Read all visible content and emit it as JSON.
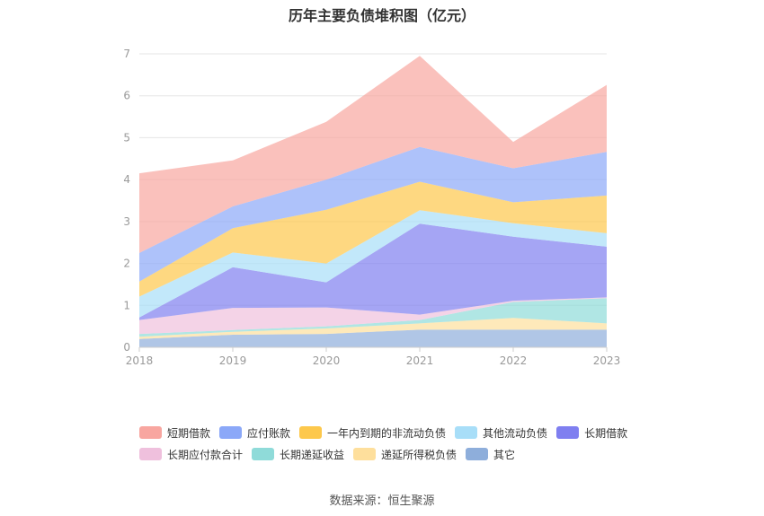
{
  "chart_data": {
    "type": "area",
    "stacked": true,
    "title": "历年主要负债堆积图（亿元）",
    "xlabel": "",
    "ylabel": "",
    "categories": [
      "2018",
      "2019",
      "2020",
      "2021",
      "2022",
      "2023"
    ],
    "ylim": [
      0,
      7
    ],
    "yticks": [
      0,
      1,
      2,
      3,
      4,
      5,
      6,
      7
    ],
    "grid": true,
    "legend_position": "bottom",
    "series": [
      {
        "name": "其它",
        "color": "#8eaedb",
        "values": [
          0.2,
          0.3,
          0.32,
          0.42,
          0.42,
          0.42
        ]
      },
      {
        "name": "递延所得税负债",
        "color": "#fedf9c",
        "values": [
          0.05,
          0.07,
          0.13,
          0.15,
          0.28,
          0.15
        ]
      },
      {
        "name": "长期递延收益",
        "color": "#8fdbd9",
        "values": [
          0.07,
          0.04,
          0.05,
          0.08,
          0.38,
          0.6
        ]
      },
      {
        "name": "长期应付款合计",
        "color": "#efc0dd",
        "values": [
          0.33,
          0.53,
          0.45,
          0.13,
          0.03,
          0.02
        ]
      },
      {
        "name": "长期借款",
        "color": "#7f7ff0",
        "values": [
          0.06,
          0.97,
          0.6,
          2.17,
          1.53,
          1.21
        ]
      },
      {
        "name": "其他流动负债",
        "color": "#a8def8",
        "values": [
          0.5,
          0.35,
          0.45,
          0.32,
          0.32,
          0.32
        ]
      },
      {
        "name": "一年内到期的非流动负债",
        "color": "#fdc84c",
        "values": [
          0.36,
          0.58,
          1.28,
          0.68,
          0.5,
          0.9
        ]
      },
      {
        "name": "应付账款",
        "color": "#8ba8f8",
        "values": [
          0.68,
          0.52,
          0.72,
          0.83,
          0.81,
          1.04
        ]
      },
      {
        "name": "短期借款",
        "color": "#f8a6a0",
        "values": [
          1.9,
          1.1,
          1.38,
          2.17,
          0.63,
          1.6
        ]
      }
    ],
    "legend_order": [
      "短期借款",
      "应付账款",
      "一年内到期的非流动负债",
      "其他流动负债",
      "长期借款",
      "长期应付款合计",
      "长期递延收益",
      "递延所得税负债",
      "其它"
    ],
    "source": "数据来源：恒生聚源"
  }
}
